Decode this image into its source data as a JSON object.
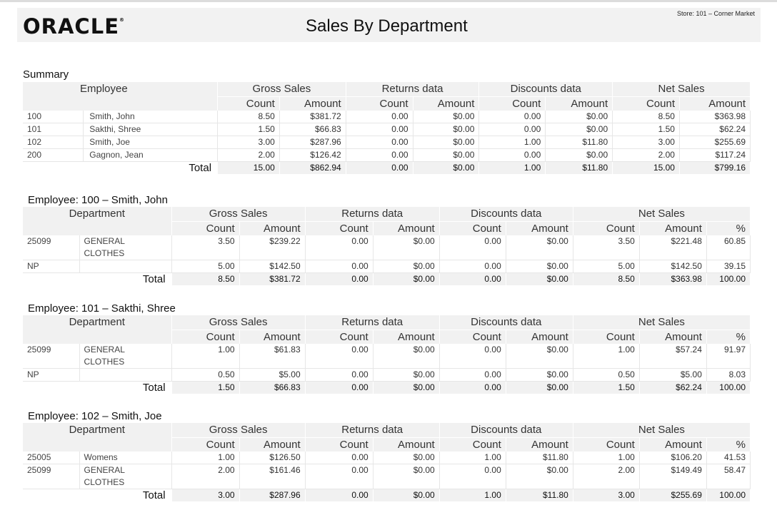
{
  "header": {
    "logo": "ORACLE",
    "title": "Sales By Department",
    "store": "Store: 101 – Corner Market"
  },
  "summary": {
    "title": "Summary",
    "col_first": "Employee",
    "groups": [
      "Gross Sales",
      "Returns data",
      "Discounts data",
      "Net Sales"
    ],
    "subcols": [
      "Count",
      "Amount"
    ],
    "rows": [
      [
        "100",
        "Smith, John",
        "8.50",
        "$381.72",
        "0.00",
        "$0.00",
        "0.00",
        "$0.00",
        "8.50",
        "$363.98"
      ],
      [
        "101",
        "Sakthi, Shree",
        "1.50",
        "$66.83",
        "0.00",
        "$0.00",
        "0.00",
        "$0.00",
        "1.50",
        "$62.24"
      ],
      [
        "102",
        "Smith, Joe",
        "3.00",
        "$287.96",
        "0.00",
        "$0.00",
        "1.00",
        "$11.80",
        "3.00",
        "$255.69"
      ],
      [
        "200",
        "Gagnon, Jean",
        "2.00",
        "$126.42",
        "0.00",
        "$0.00",
        "0.00",
        "$0.00",
        "2.00",
        "$117.24"
      ]
    ],
    "total_label": "Total",
    "total": [
      "15.00",
      "$862.94",
      "0.00",
      "$0.00",
      "1.00",
      "$11.80",
      "15.00",
      "$799.16"
    ]
  },
  "employees": [
    {
      "title": "Employee: 100  –  Smith, John",
      "col_first": "Department",
      "rows": [
        [
          "25099",
          "GENERAL CLOTHES",
          "3.50",
          "$239.22",
          "0.00",
          "$0.00",
          "0.00",
          "$0.00",
          "3.50",
          "$221.48",
          "60.85"
        ],
        [
          "NP",
          "",
          "5.00",
          "$142.50",
          "0.00",
          "$0.00",
          "0.00",
          "$0.00",
          "5.00",
          "$142.50",
          "39.15"
        ]
      ],
      "total": [
        "8.50",
        "$381.72",
        "0.00",
        "$0.00",
        "0.00",
        "$0.00",
        "8.50",
        "$363.98",
        "100.00"
      ]
    },
    {
      "title": "Employee: 101  –  Sakthi, Shree",
      "col_first": "Department",
      "rows": [
        [
          "25099",
          "GENERAL CLOTHES",
          "1.00",
          "$61.83",
          "0.00",
          "$0.00",
          "0.00",
          "$0.00",
          "1.00",
          "$57.24",
          "91.97"
        ],
        [
          "NP",
          "",
          "0.50",
          "$5.00",
          "0.00",
          "$0.00",
          "0.00",
          "$0.00",
          "0.50",
          "$5.00",
          "8.03"
        ]
      ],
      "total": [
        "1.50",
        "$66.83",
        "0.00",
        "$0.00",
        "0.00",
        "$0.00",
        "1.50",
        "$62.24",
        "100.00"
      ]
    },
    {
      "title": "Employee: 102  –  Smith, Joe",
      "col_first": "Department",
      "rows": [
        [
          "25005",
          "Womens",
          "1.00",
          "$126.50",
          "0.00",
          "$0.00",
          "1.00",
          "$11.80",
          "1.00",
          "$106.20",
          "41.53"
        ],
        [
          "25099",
          "GENERAL CLOTHES",
          "2.00",
          "$161.46",
          "0.00",
          "$0.00",
          "0.00",
          "$0.00",
          "2.00",
          "$149.49",
          "58.47"
        ]
      ],
      "total": [
        "3.00",
        "$287.96",
        "0.00",
        "$0.00",
        "1.00",
        "$11.80",
        "3.00",
        "$255.69",
        "100.00"
      ]
    }
  ],
  "pct_label": "%"
}
